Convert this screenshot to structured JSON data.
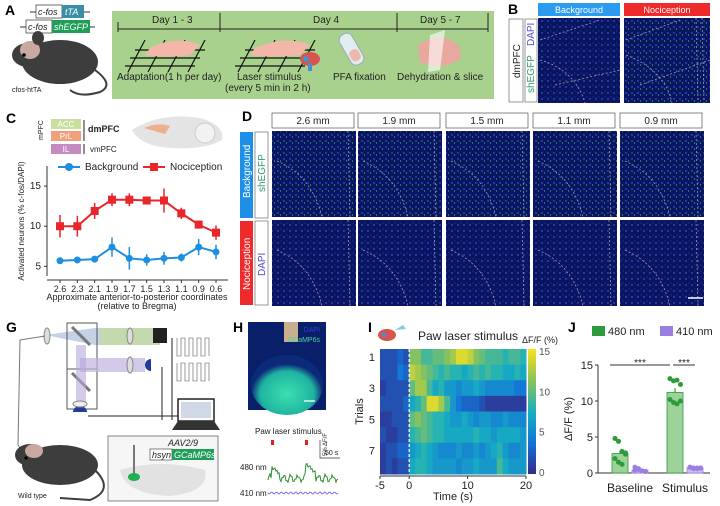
{
  "panel_labels": {
    "a": "A",
    "b": "B",
    "c": "C",
    "d": "D",
    "g": "G",
    "h": "H",
    "i": "I",
    "j": "J"
  },
  "panel_a": {
    "genotype_1": {
      "promoter": "c-fos",
      "gene": "tTA"
    },
    "genotype_2": {
      "promoter": "c-fos",
      "gene": "shEGFP"
    },
    "mouse_label": "cfos-htTA",
    "days": [
      "Day 1 - 3",
      "Day 4",
      "Day 5 - 7"
    ],
    "steps": {
      "adaptation": "Adaptation(1 h per day)",
      "laser_1": "Laser stimulus",
      "laser_2": "(every 5 min in 2 h)",
      "pfa": "PFA fixation",
      "dehydration": "Dehydration & slice"
    },
    "colors": {
      "timeline_bg": "#a9d18e",
      "tTA": "#3a8fa8",
      "shEGFP": "#1f9e5a"
    }
  },
  "panel_b": {
    "columns": [
      "Background",
      "Nociception"
    ],
    "region": "dmPFC",
    "stains": [
      "DAPI",
      "shEGFP"
    ],
    "colors": {
      "background": "#2b9bf0",
      "nociception": "#ee2a2a"
    }
  },
  "panel_c": {
    "regions": {
      "acc": "ACC",
      "prl": "PrL",
      "il": "IL",
      "dmpfc": "dmPFC",
      "vmpfc": "vmPFC",
      "mpfc": "mPFC"
    },
    "region_colors": {
      "acc": "#c9df9e",
      "prl": "#f0a07a",
      "il": "#c58ac2"
    }
  },
  "chart_data": [
    {
      "id": "C",
      "type": "line",
      "ylabel": "Activated neurons (% c-fos/DAPI)",
      "xlabel": "Approximate anterior-to-posterior coordinates",
      "xlabel_2": "(relative to Bregma)",
      "categories": [
        "2.6",
        "2.3",
        "2.1",
        "1.9",
        "1.7",
        "1.5",
        "1.3",
        "1.1",
        "0.9",
        "0.6"
      ],
      "yticks": [
        "5",
        "10",
        "15"
      ],
      "ylim": [
        3.8,
        17.5
      ],
      "legend_position": "top",
      "series": [
        {
          "name": "Background",
          "color": "#1e8fe0",
          "marker": "circle",
          "values": [
            5.7,
            5.8,
            5.9,
            7.4,
            6.0,
            5.8,
            6.0,
            6.1,
            7.4,
            6.8
          ],
          "errors": [
            0.4,
            0.4,
            0.3,
            1.2,
            1.4,
            0.7,
            0.8,
            0.5,
            1.0,
            0.9
          ]
        },
        {
          "name": "Nociception",
          "color": "#e8262b",
          "marker": "square",
          "values": [
            10.0,
            10.0,
            11.9,
            13.3,
            13.3,
            13.2,
            13.2,
            11.6,
            10.2,
            9.2
          ],
          "errors": [
            1.4,
            1.3,
            1.0,
            0.8,
            0.8,
            0.5,
            1.5,
            0.7,
            0.5,
            0.9
          ]
        }
      ]
    },
    {
      "id": "I",
      "type": "heatmap",
      "title": "Paw laser stimulus",
      "colorbar_label": "ΔF/F (%)",
      "colorbar_ticks": [
        "0",
        "5",
        "10",
        "15"
      ],
      "color_range": [
        0,
        15
      ],
      "ylabel": "Trials",
      "yticks": [
        "1",
        "3",
        "5",
        "7"
      ],
      "xlabel": "Time (s)",
      "xticks": [
        "-5",
        "0",
        "10",
        "20"
      ],
      "xlim": [
        -5,
        20
      ],
      "rows": [
        [
          2,
          2,
          2,
          3,
          2,
          11,
          11,
          9,
          9,
          10,
          10,
          11,
          12,
          14,
          14,
          13,
          11,
          10,
          9,
          9,
          9,
          8,
          9,
          9,
          8
        ],
        [
          2,
          2,
          2,
          4,
          3,
          13,
          12,
          11,
          10,
          9,
          8,
          9,
          8,
          8,
          7,
          8,
          9,
          8,
          9,
          8,
          8,
          7,
          7,
          8,
          7
        ],
        [
          1,
          2,
          2,
          2,
          2,
          10,
          12,
          12,
          9,
          7,
          8,
          6,
          6,
          5,
          6,
          6,
          7,
          6,
          5,
          5,
          5,
          5,
          5,
          4,
          4
        ],
        [
          2,
          2,
          2,
          2,
          3,
          7,
          8,
          10,
          14,
          14,
          12,
          9,
          6,
          4,
          3,
          3,
          3,
          2,
          1,
          1,
          1,
          1,
          1,
          1,
          1
        ],
        [
          1,
          1,
          2,
          2,
          2,
          10,
          11,
          10,
          9,
          8,
          8,
          7,
          6,
          6,
          7,
          6,
          5,
          6,
          6,
          5,
          5,
          6,
          5,
          5,
          5
        ],
        [
          2,
          1,
          1,
          2,
          2,
          8,
          9,
          10,
          9,
          8,
          8,
          7,
          7,
          7,
          7,
          7,
          8,
          7,
          7,
          6,
          7,
          7,
          7,
          7,
          6
        ],
        [
          1,
          2,
          2,
          3,
          3,
          6,
          7,
          8,
          7,
          6,
          5,
          5,
          5,
          6,
          5,
          5,
          6,
          5,
          6,
          7,
          8,
          6,
          5,
          5,
          6
        ],
        [
          1,
          2,
          1,
          2,
          2,
          7,
          8,
          8,
          7,
          6,
          6,
          6,
          6,
          5,
          6,
          6,
          7,
          6,
          6,
          6,
          9,
          7,
          6,
          6,
          6
        ]
      ]
    },
    {
      "id": "J",
      "type": "bar",
      "ylabel": "ΔF/F (%)",
      "categories": [
        "Baseline",
        "Stimulus"
      ],
      "yticks": [
        "0",
        "5",
        "10",
        "15"
      ],
      "ylim": [
        0,
        15
      ],
      "legend_position": "top",
      "significance": [
        "***",
        "***"
      ],
      "series": [
        {
          "name": "480 nm",
          "color": "#2e9b3a",
          "values": [
            2.7,
            11.2
          ],
          "errors": [
            0.4,
            0.6
          ],
          "points": [
            [
              4.8,
              4.4,
              3.0,
              2.6,
              2.0,
              1.5,
              1.2,
              2.8
            ],
            [
              13.1,
              12.8,
              12.9,
              12.3,
              10.2,
              9.8,
              9.6,
              10.0
            ]
          ]
        },
        {
          "name": "410 nm",
          "color": "#9a7fe0",
          "values": [
            0.4,
            0.7
          ],
          "errors": [
            0.1,
            0.1
          ],
          "points": [
            [
              0.8,
              0.5,
              0.3,
              0.2,
              0.4,
              0.6,
              0.3,
              0.2
            ],
            [
              0.8,
              0.7,
              0.6,
              0.7,
              0.8,
              0.6,
              0.7,
              0.7
            ]
          ]
        }
      ]
    }
  ],
  "panel_d": {
    "coordinates": [
      "2.6 mm",
      "1.9 mm",
      "1.5 mm",
      "1.1 mm",
      "0.9 mm"
    ],
    "rows": [
      "Background",
      "Nociception"
    ],
    "stains": [
      "shEGFP",
      "DAPI"
    ]
  },
  "panel_g": {
    "virus": "AAV2/9",
    "promoter": "hsyn",
    "indicator": "GCaMP6s",
    "mouse_label": "Wild type"
  },
  "panel_h": {
    "stains": [
      "DAPI",
      "GCaMP6s"
    ],
    "trace_title": "Paw laser stimulus",
    "channels": [
      "480 nm",
      "410 nm"
    ],
    "scale_y": "5% ΔF/F",
    "scale_x": "50 s"
  }
}
